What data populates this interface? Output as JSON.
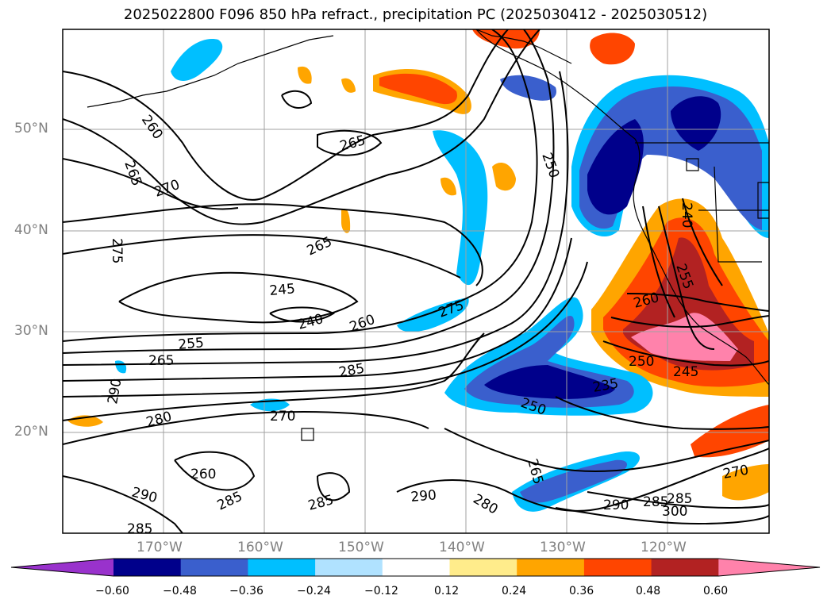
{
  "title": "2025022800 F096 850 hPa refract., precipitation PC (2025030412 - 2025030512)",
  "lat_labels": [
    "50°N",
    "40°N",
    "30°N",
    "20°N"
  ],
  "lon_labels": [
    "170°W",
    "160°W",
    "150°W",
    "140°W",
    "130°W",
    "120°W"
  ],
  "colorbar": {
    "extend": "both",
    "ticks": [
      "−0.60",
      "−0.48",
      "−0.36",
      "−0.24",
      "−0.12",
      "0.12",
      "0.24",
      "0.36",
      "0.48",
      "0.60"
    ],
    "colors": [
      "#9932cc",
      "#00008b",
      "#3a5fcd",
      "#00bfff",
      "#b0e2ff",
      "#ffffff",
      "#ffec8b",
      "#ffa500",
      "#ff4500",
      "#b22222",
      "#ff82ab"
    ]
  },
  "contour_labels": [
    "260",
    "265",
    "265",
    "270",
    "275",
    "265",
    "250",
    "245",
    "240",
    "255",
    "260",
    "265",
    "285",
    "290",
    "280",
    "270",
    "275",
    "260",
    "250",
    "265",
    "235",
    "250",
    "245",
    "240",
    "260",
    "290",
    "285",
    "285",
    "285",
    "290",
    "280",
    "290",
    "285",
    "285",
    "300",
    "270",
    "255"
  ]
}
